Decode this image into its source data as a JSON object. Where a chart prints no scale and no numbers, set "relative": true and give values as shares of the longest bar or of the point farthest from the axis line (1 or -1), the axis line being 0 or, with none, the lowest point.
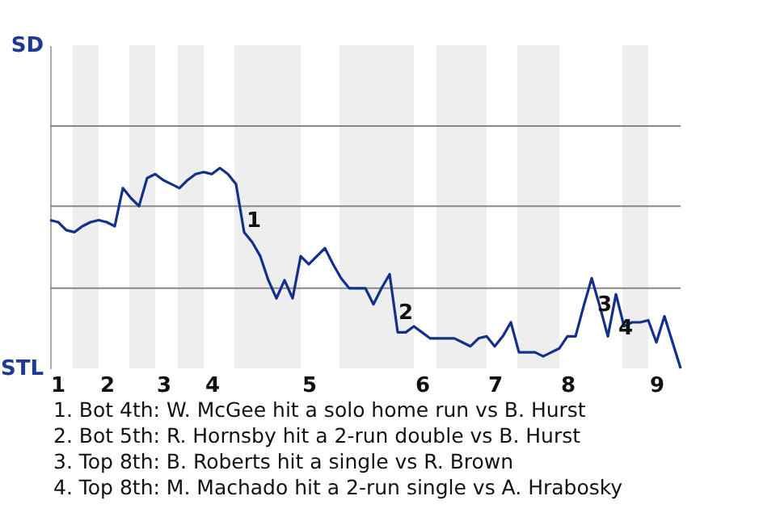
{
  "chart_data": {
    "type": "line",
    "relative": true,
    "categories": [
      "1",
      null,
      null,
      null,
      null,
      null,
      null,
      "2",
      null,
      null,
      null,
      null,
      null,
      null,
      "3",
      null,
      null,
      null,
      null,
      null,
      "4",
      null,
      null,
      null,
      null,
      null,
      null,
      null,
      null,
      null,
      null,
      null,
      "5",
      null,
      null,
      null,
      null,
      null,
      null,
      null,
      null,
      null,
      null,
      null,
      null,
      null,
      "6",
      null,
      null,
      null,
      null,
      null,
      null,
      null,
      null,
      "7",
      null,
      null,
      null,
      null,
      null,
      null,
      null,
      null,
      "8",
      null,
      null,
      null,
      null,
      null,
      null,
      null,
      null,
      null,
      null,
      "9",
      null,
      null,
      null
    ],
    "series": [
      {
        "color": "#12308c",
        "values": [
          0.74,
          0.73,
          0.69,
          0.68,
          0.71,
          0.73,
          0.74,
          0.73,
          0.71,
          0.9,
          0.85,
          0.81,
          0.95,
          0.97,
          0.94,
          0.92,
          0.9,
          0.94,
          0.97,
          0.98,
          0.97,
          1,
          0.97,
          0.92,
          0.68,
          0.63,
          0.56,
          0.44,
          0.35,
          0.44,
          0.35,
          0.56,
          0.52,
          0.56,
          0.6,
          0.52,
          0.45,
          0.4,
          0.4,
          0.4,
          0.32,
          0.4,
          0.47,
          0.18,
          0.18,
          0.21,
          0.18,
          0.15,
          0.15,
          0.15,
          0.15,
          0.13,
          0.11,
          0.15,
          0.16,
          0.11,
          0.16,
          0.23,
          0.08,
          0.08,
          0.08,
          0.06,
          0.08,
          0.1,
          0.16,
          0.16,
          0.31,
          0.45,
          0.31,
          0.16,
          0.37,
          0.21,
          0.23,
          0.23,
          0.24,
          0.13,
          0.26,
          0.13,
          0
        ]
      }
    ],
    "ref_lines": [
      {
        "axis": "y",
        "value": 0.4,
        "color": "#888888"
      },
      {
        "axis": "y",
        "value": 0.81,
        "color": "#888888"
      },
      {
        "axis": "y",
        "value": 1.21,
        "color": "#888888"
      }
    ],
    "marker": "none",
    "line_style": "solid",
    "annotations": [
      "SD",
      "STL",
      "1",
      "2",
      "3",
      "4",
      "1. Bot 4th: W. McGee hit a solo home run vs B. Hurst",
      "2. Bot 5th: R. Hornsby hit a 2-run double vs B. Hurst",
      "3. Top 8th: B. Roberts hit a single vs R. Brown",
      "4. Top 8th: M. Machado hit a 2-run single vs A. Hrabosky"
    ]
  }
}
